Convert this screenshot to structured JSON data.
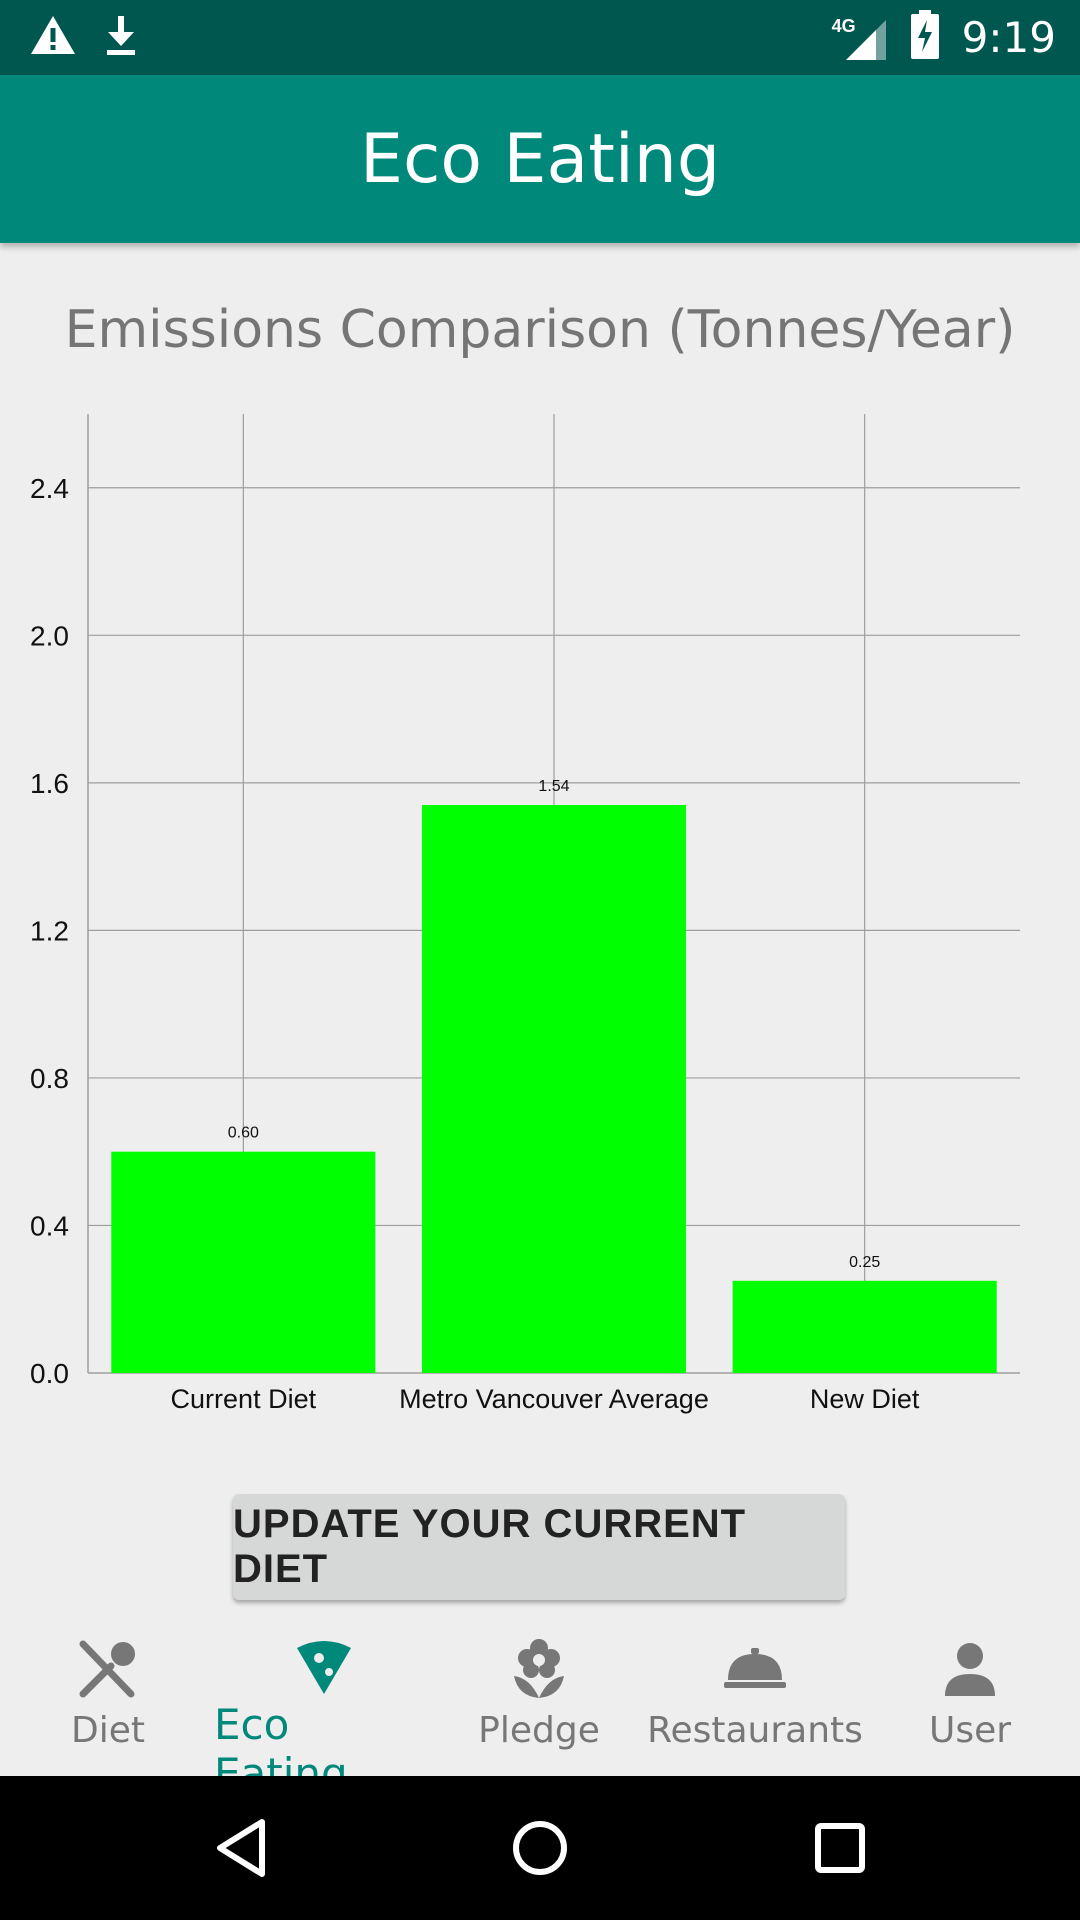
{
  "status_bar": {
    "network": "4G",
    "time": "9:19",
    "icons": [
      "warning-icon",
      "download-icon",
      "signal-icon",
      "battery-charging-icon"
    ]
  },
  "app_bar": {
    "title": "Eco Eating"
  },
  "chart_title": "Emissions Comparison (Tonnes/Year)",
  "chart_data": {
    "type": "bar",
    "title": "Emissions Comparison (Tonnes/Year)",
    "categories": [
      "Current Diet",
      "Metro Vancouver Average",
      "New Diet"
    ],
    "values": [
      0.6,
      1.54,
      0.25
    ],
    "value_labels": [
      "0.60",
      "1.54",
      "0.25"
    ],
    "ylim": [
      0,
      2.6
    ],
    "yticks": [
      "0.0",
      "0.4",
      "0.8",
      "1.2",
      "1.6",
      "2.0",
      "2.4"
    ],
    "grid": true,
    "bar_color": "#00ff00"
  },
  "update_button": {
    "label": "UPDATE YOUR CURRENT DIET"
  },
  "bottom_nav": {
    "items": [
      {
        "label": "Diet",
        "icon": "utensils-icon"
      },
      {
        "label": "Eco Eating",
        "icon": "pizza-slice-icon",
        "active": true
      },
      {
        "label": "Pledge",
        "icon": "flower-icon"
      },
      {
        "label": "Restaurants",
        "icon": "cloche-icon"
      },
      {
        "label": "User",
        "icon": "person-icon"
      }
    ]
  },
  "colors": {
    "status_bar": "#00574f",
    "app_bar": "#00897b",
    "accent": "#00897b",
    "background": "#eeeeee"
  }
}
